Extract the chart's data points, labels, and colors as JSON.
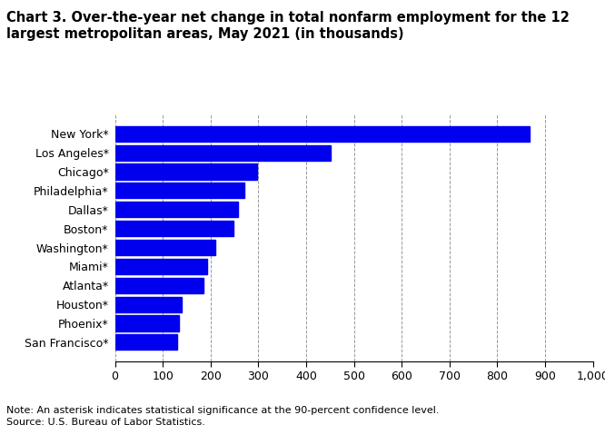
{
  "title_line1": "Chart 3. Over-the-year net change in total nonfarm employment for the 12",
  "title_line2": "largest metropolitan areas, May 2021 (in thousands)",
  "categories": [
    "San Francisco*",
    "Phoenix*",
    "Houston*",
    "Atlanta*",
    "Miami*",
    "Washington*",
    "Boston*",
    "Dallas*",
    "Philadelphia*",
    "Chicago*",
    "Los Angeles*",
    "New York*"
  ],
  "values": [
    130,
    133,
    140,
    185,
    192,
    210,
    248,
    258,
    270,
    298,
    452,
    868
  ],
  "bar_color": "#0000ee",
  "xlim": [
    0,
    1000
  ],
  "xticks": [
    0,
    100,
    200,
    300,
    400,
    500,
    600,
    700,
    800,
    900,
    1000
  ],
  "note": "Note: An asterisk indicates statistical significance at the 90-percent confidence level.",
  "source": "Source: U.S. Bureau of Labor Statistics.",
  "title_fontsize": 10.5,
  "tick_fontsize": 9,
  "note_fontsize": 8,
  "background_color": "#ffffff",
  "grid_color": "#999999"
}
